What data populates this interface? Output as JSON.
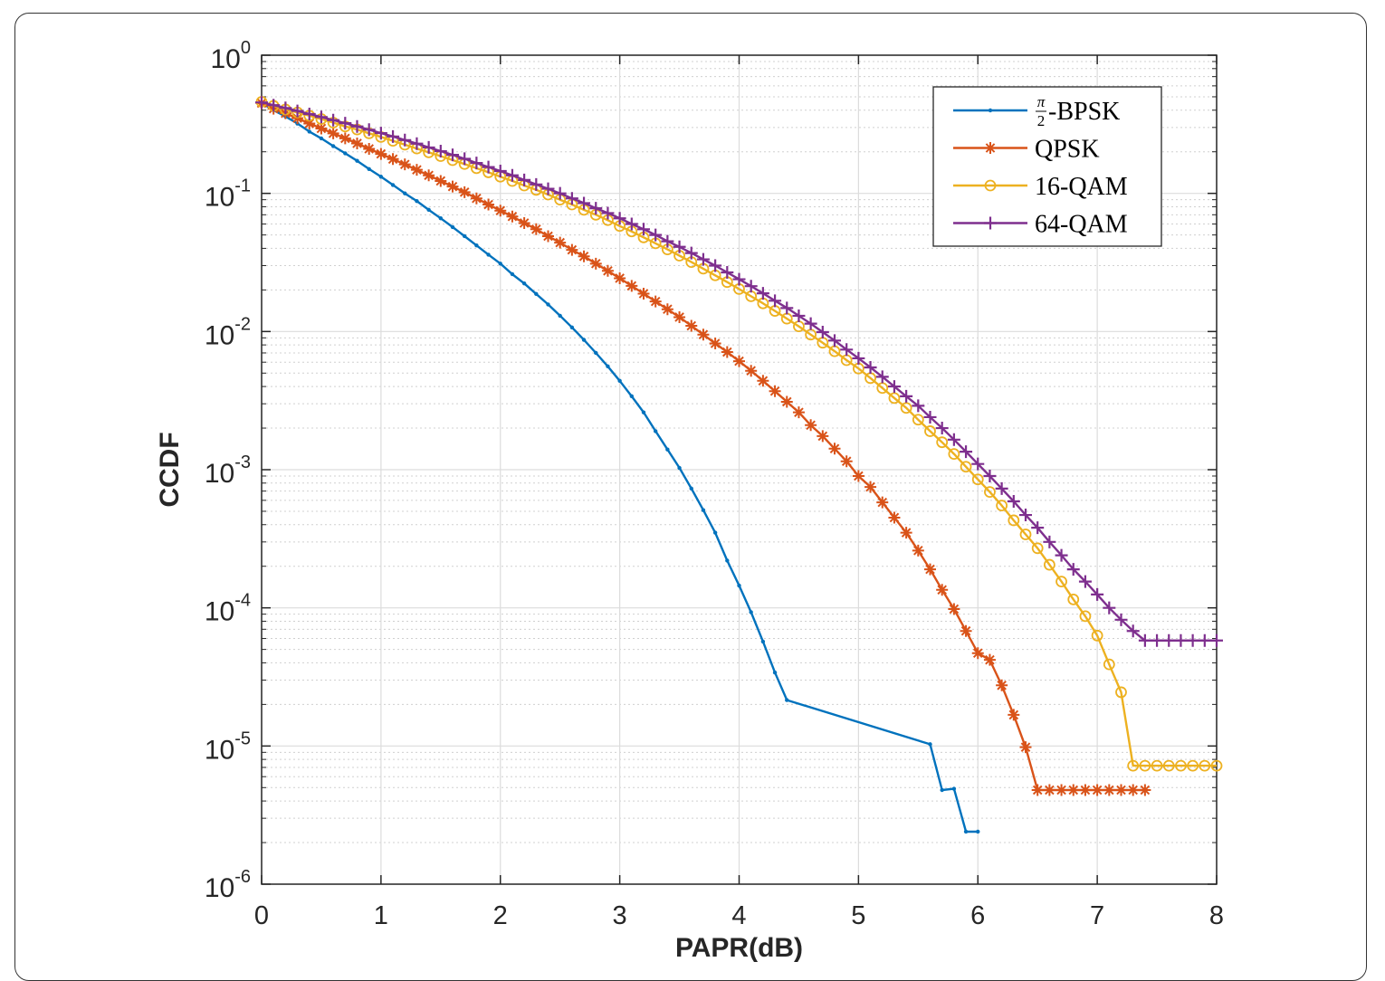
{
  "chart_data": {
    "type": "line",
    "title": "",
    "xlabel": "PAPR(dB)",
    "ylabel": "CCDF",
    "xlim": [
      0,
      8
    ],
    "ylim": [
      1e-06,
      1
    ],
    "yscale": "log",
    "grid": true,
    "minor_grid": true,
    "legend_position": "top-right",
    "x_ticks": [
      {
        "value": 0,
        "label": "0"
      },
      {
        "value": 1,
        "label": "1"
      },
      {
        "value": 2,
        "label": "2"
      },
      {
        "value": 3,
        "label": "3"
      },
      {
        "value": 4,
        "label": "4"
      },
      {
        "value": 5,
        "label": "5"
      },
      {
        "value": 6,
        "label": "6"
      },
      {
        "value": 7,
        "label": "7"
      },
      {
        "value": 8,
        "label": "8"
      }
    ],
    "y_ticks": [
      {
        "value": 1,
        "base": "10",
        "exp": "0"
      },
      {
        "value": 0.1,
        "base": "10",
        "exp": "-1"
      },
      {
        "value": 0.01,
        "base": "10",
        "exp": "-2"
      },
      {
        "value": 0.001,
        "base": "10",
        "exp": "-3"
      },
      {
        "value": 0.0001,
        "base": "10",
        "exp": "-4"
      },
      {
        "value": 1e-05,
        "base": "10",
        "exp": "-5"
      },
      {
        "value": 1e-06,
        "base": "10",
        "exp": "-6"
      }
    ],
    "series": [
      {
        "name": "-BPSK",
        "name_prefix_num": "π",
        "name_prefix_den": "2",
        "color": "#0072BD",
        "marker": "dot",
        "x_start": 0,
        "x_step": 0.1,
        "y": [
          0.45,
          0.4,
          0.36,
          0.32,
          0.28,
          0.25,
          0.22,
          0.195,
          0.172,
          0.15,
          0.132,
          0.115,
          0.1,
          0.088,
          0.076,
          0.066,
          0.057,
          0.049,
          0.042,
          0.036,
          0.031,
          0.026,
          0.0223,
          0.0187,
          0.0157,
          0.013,
          0.0107,
          0.0087,
          0.007,
          0.0056,
          0.0044,
          0.0034,
          0.0026,
          0.0019,
          0.0014,
          0.00103,
          0.00073,
          0.00051,
          0.00035,
          0.00022,
          0.000145,
          9.3e-05,
          5.7e-05,
          3.4e-05,
          2.15e-05,
          1.03e-05,
          4.8e-06,
          4.9e-06,
          2.4e-06,
          2.4e-06
        ],
        "x_override": [
          0,
          0.1,
          0.2,
          0.3,
          0.4,
          0.5,
          0.6,
          0.7,
          0.8,
          0.9,
          1.0,
          1.1,
          1.2,
          1.3,
          1.4,
          1.5,
          1.6,
          1.7,
          1.8,
          1.9,
          2.0,
          2.1,
          2.2,
          2.3,
          2.4,
          2.5,
          2.6,
          2.7,
          2.8,
          2.9,
          3.0,
          3.1,
          3.2,
          3.3,
          3.4,
          3.5,
          3.6,
          3.7,
          3.8,
          3.9,
          4.0,
          4.1,
          4.2,
          4.3,
          4.4,
          5.6,
          5.7,
          5.8,
          5.9,
          6.0
        ]
      },
      {
        "name": "QPSK",
        "color": "#D95319",
        "marker": "asterisk",
        "x": [
          0,
          0.1,
          0.2,
          0.3,
          0.4,
          0.5,
          0.6,
          0.7,
          0.8,
          0.9,
          1.0,
          1.1,
          1.2,
          1.3,
          1.4,
          1.5,
          1.6,
          1.7,
          1.8,
          1.9,
          2.0,
          2.1,
          2.2,
          2.3,
          2.4,
          2.5,
          2.6,
          2.7,
          2.8,
          2.9,
          3.0,
          3.1,
          3.2,
          3.3,
          3.4,
          3.5,
          3.6,
          3.7,
          3.8,
          3.9,
          4.0,
          4.1,
          4.2,
          4.3,
          4.4,
          4.5,
          4.6,
          4.7,
          4.8,
          4.9,
          5.0,
          5.1,
          5.2,
          5.3,
          5.4,
          5.5,
          5.6,
          5.7,
          5.8,
          5.9,
          6.0,
          6.1,
          6.2,
          6.3,
          6.4,
          6.5,
          6.6,
          6.7,
          6.8,
          6.9,
          7.0,
          7.1,
          7.2,
          7.3,
          7.4
        ],
        "y": [
          0.45,
          0.41,
          0.38,
          0.35,
          0.32,
          0.295,
          0.272,
          0.25,
          0.23,
          0.21,
          0.193,
          0.177,
          0.162,
          0.148,
          0.135,
          0.123,
          0.112,
          0.102,
          0.092,
          0.083,
          0.075,
          0.068,
          0.061,
          0.055,
          0.049,
          0.044,
          0.039,
          0.035,
          0.031,
          0.0275,
          0.0243,
          0.0214,
          0.0188,
          0.0165,
          0.0145,
          0.0127,
          0.011,
          0.0095,
          0.0082,
          0.0071,
          0.0061,
          0.0052,
          0.0044,
          0.0037,
          0.0031,
          0.0026,
          0.0021,
          0.00175,
          0.00142,
          0.00115,
          0.0009,
          0.00075,
          0.00058,
          0.00045,
          0.00035,
          0.00026,
          0.00019,
          0.000135,
          9.8e-05,
          6.8e-05,
          4.7e-05,
          4.2e-05,
          2.75e-05,
          1.68e-05,
          9.8e-06,
          4.8e-06,
          4.8e-06,
          4.8e-06,
          4.8e-06,
          4.8e-06,
          4.8e-06,
          4.8e-06,
          4.8e-06,
          4.8e-06,
          4.8e-06
        ]
      },
      {
        "name": "16-QAM",
        "color": "#EDB120",
        "marker": "circle",
        "x": [
          0,
          0.1,
          0.2,
          0.3,
          0.4,
          0.5,
          0.6,
          0.7,
          0.8,
          0.9,
          1.0,
          1.1,
          1.2,
          1.3,
          1.4,
          1.5,
          1.6,
          1.7,
          1.8,
          1.9,
          2.0,
          2.1,
          2.2,
          2.3,
          2.4,
          2.5,
          2.6,
          2.7,
          2.8,
          2.9,
          3.0,
          3.1,
          3.2,
          3.3,
          3.4,
          3.5,
          3.6,
          3.7,
          3.8,
          3.9,
          4.0,
          4.1,
          4.2,
          4.3,
          4.4,
          4.5,
          4.6,
          4.7,
          4.8,
          4.9,
          5.0,
          5.1,
          5.2,
          5.3,
          5.4,
          5.5,
          5.6,
          5.7,
          5.8,
          5.9,
          6.0,
          6.1,
          6.2,
          6.3,
          6.4,
          6.5,
          6.6,
          6.7,
          6.8,
          6.9,
          7.0,
          7.1,
          7.2,
          7.3,
          7.4,
          7.5,
          7.6,
          7.7,
          7.8,
          7.9,
          8.0
        ],
        "y": [
          0.46,
          0.43,
          0.405,
          0.385,
          0.365,
          0.345,
          0.325,
          0.305,
          0.29,
          0.272,
          0.256,
          0.24,
          0.225,
          0.211,
          0.198,
          0.186,
          0.174,
          0.163,
          0.152,
          0.142,
          0.132,
          0.123,
          0.114,
          0.106,
          0.098,
          0.09,
          0.083,
          0.076,
          0.07,
          0.064,
          0.058,
          0.053,
          0.048,
          0.0435,
          0.0393,
          0.0354,
          0.0318,
          0.0285,
          0.0255,
          0.0228,
          0.0203,
          0.018,
          0.016,
          0.0141,
          0.0124,
          0.0109,
          0.0095,
          0.0083,
          0.0072,
          0.0062,
          0.0054,
          0.0046,
          0.0039,
          0.0033,
          0.0028,
          0.0023,
          0.0019,
          0.00158,
          0.0013,
          0.00105,
          0.00085,
          0.00069,
          0.00055,
          0.00043,
          0.00034,
          0.00027,
          0.000205,
          0.000155,
          0.000115,
          8.7e-05,
          6.3e-05,
          3.9e-05,
          2.45e-05,
          7.2e-06,
          7.2e-06,
          7.2e-06,
          7.2e-06,
          7.2e-06,
          7.2e-06,
          7.2e-06,
          7.2e-06
        ]
      },
      {
        "name": "64-QAM",
        "color": "#7E2F8E",
        "marker": "plus",
        "x": [
          0,
          0.1,
          0.2,
          0.3,
          0.4,
          0.5,
          0.6,
          0.7,
          0.8,
          0.9,
          1.0,
          1.1,
          1.2,
          1.3,
          1.4,
          1.5,
          1.6,
          1.7,
          1.8,
          1.9,
          2.0,
          2.1,
          2.2,
          2.3,
          2.4,
          2.5,
          2.6,
          2.7,
          2.8,
          2.9,
          3.0,
          3.1,
          3.2,
          3.3,
          3.4,
          3.5,
          3.6,
          3.7,
          3.8,
          3.9,
          4.0,
          4.1,
          4.2,
          4.3,
          4.4,
          4.5,
          4.6,
          4.7,
          4.8,
          4.9,
          5.0,
          5.1,
          5.2,
          5.3,
          5.4,
          5.5,
          5.6,
          5.7,
          5.8,
          5.9,
          6.0,
          6.1,
          6.2,
          6.3,
          6.4,
          6.5,
          6.6,
          6.7,
          6.8,
          6.9,
          7.0,
          7.1,
          7.2,
          7.3,
          7.4,
          7.5,
          7.6,
          7.7,
          7.8,
          7.9,
          8.0
        ],
        "y": [
          0.455,
          0.435,
          0.415,
          0.395,
          0.375,
          0.357,
          0.339,
          0.322,
          0.305,
          0.289,
          0.273,
          0.258,
          0.243,
          0.229,
          0.215,
          0.202,
          0.19,
          0.178,
          0.166,
          0.155,
          0.145,
          0.135,
          0.125,
          0.116,
          0.108,
          0.1,
          0.092,
          0.085,
          0.078,
          0.072,
          0.066,
          0.06,
          0.055,
          0.05,
          0.045,
          0.041,
          0.037,
          0.0333,
          0.03,
          0.0268,
          0.0239,
          0.0213,
          0.0189,
          0.0167,
          0.0148,
          0.013,
          0.0114,
          0.0099,
          0.0086,
          0.0074,
          0.0064,
          0.0055,
          0.0047,
          0.004,
          0.0034,
          0.0029,
          0.0024,
          0.002,
          0.00165,
          0.00135,
          0.0011,
          0.0009,
          0.00073,
          0.00059,
          0.00047,
          0.00038,
          0.0003,
          0.00024,
          0.00019,
          0.000155,
          0.000125,
          0.0001,
          8.2e-05,
          6.8e-05,
          5.8e-05,
          5.8e-05,
          5.8e-05,
          5.8e-05,
          5.8e-05,
          5.8e-05,
          5.8e-05
        ]
      }
    ]
  }
}
